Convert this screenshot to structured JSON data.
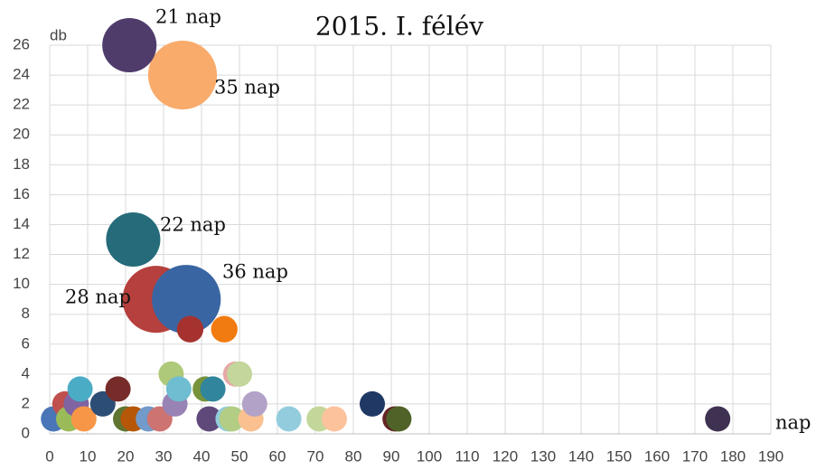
{
  "chart_data": {
    "type": "bubble",
    "title": "2015. I. félév",
    "x_label": "nap",
    "y_label": "db",
    "x": [
      35,
      21,
      22,
      28,
      36,
      37,
      46,
      1,
      4,
      5,
      7,
      8,
      9,
      14,
      18,
      20,
      22,
      26,
      29,
      32,
      33,
      34,
      41,
      43,
      42,
      47,
      48,
      49,
      50,
      53,
      54,
      63,
      71,
      75,
      85,
      91,
      92,
      176
    ],
    "values": [
      24,
      26,
      13,
      9,
      9,
      7,
      7,
      1,
      2,
      1,
      2,
      3,
      1,
      2,
      3,
      1,
      1,
      1,
      1,
      4,
      2,
      3,
      3,
      3,
      1,
      1,
      1,
      4,
      4,
      1,
      2,
      1,
      1,
      1,
      2,
      1,
      1,
      1
    ],
    "sizes": [
      7.4,
      4.6,
      4.6,
      7,
      7.4,
      1.1,
      1.1,
      1,
      1,
      1,
      1,
      1,
      1,
      1,
      1,
      1,
      1,
      1,
      1,
      1,
      1,
      1,
      1,
      1,
      1,
      1,
      1,
      1,
      1,
      1,
      1,
      1,
      1,
      1,
      1,
      1,
      1,
      1
    ],
    "colors": [
      "#f9ab6c",
      "#4f3c6b",
      "#256b7a",
      "#b5403d",
      "#3966a2",
      "#a5322f",
      "#f27b11",
      "#4a76b8",
      "#c0504d",
      "#9bbb59",
      "#8064a2",
      "#4bacc6",
      "#f79646",
      "#2c4d75",
      "#772c2a",
      "#5f7530",
      "#b65708",
      "#729aca",
      "#cd7371",
      "#afc97a",
      "#9983b5",
      "#6fbdd1",
      "#77933c",
      "#31859c",
      "#5f497a",
      "#93cddd",
      "#b3cd85",
      "#e6a8a6",
      "#c3d69b",
      "#fac090",
      "#b2a2c7",
      "#93cddd",
      "#c4d79b",
      "#fcc29b",
      "#1f3864",
      "#632523",
      "#4f6228",
      "#3f3151"
    ],
    "annotations": [
      "35 nap",
      "21 nap",
      "22 nap",
      "28 nap",
      "36 nap"
    ],
    "xlim": [
      0,
      190
    ],
    "xticks": [
      0,
      10,
      20,
      30,
      40,
      50,
      60,
      70,
      80,
      90,
      100,
      110,
      120,
      130,
      140,
      150,
      160,
      170,
      180,
      190
    ],
    "ylim": [
      0,
      26
    ],
    "yticks": [
      0,
      2,
      4,
      6,
      8,
      10,
      12,
      14,
      16,
      18,
      20,
      22,
      24,
      26
    ],
    "grid": true
  }
}
